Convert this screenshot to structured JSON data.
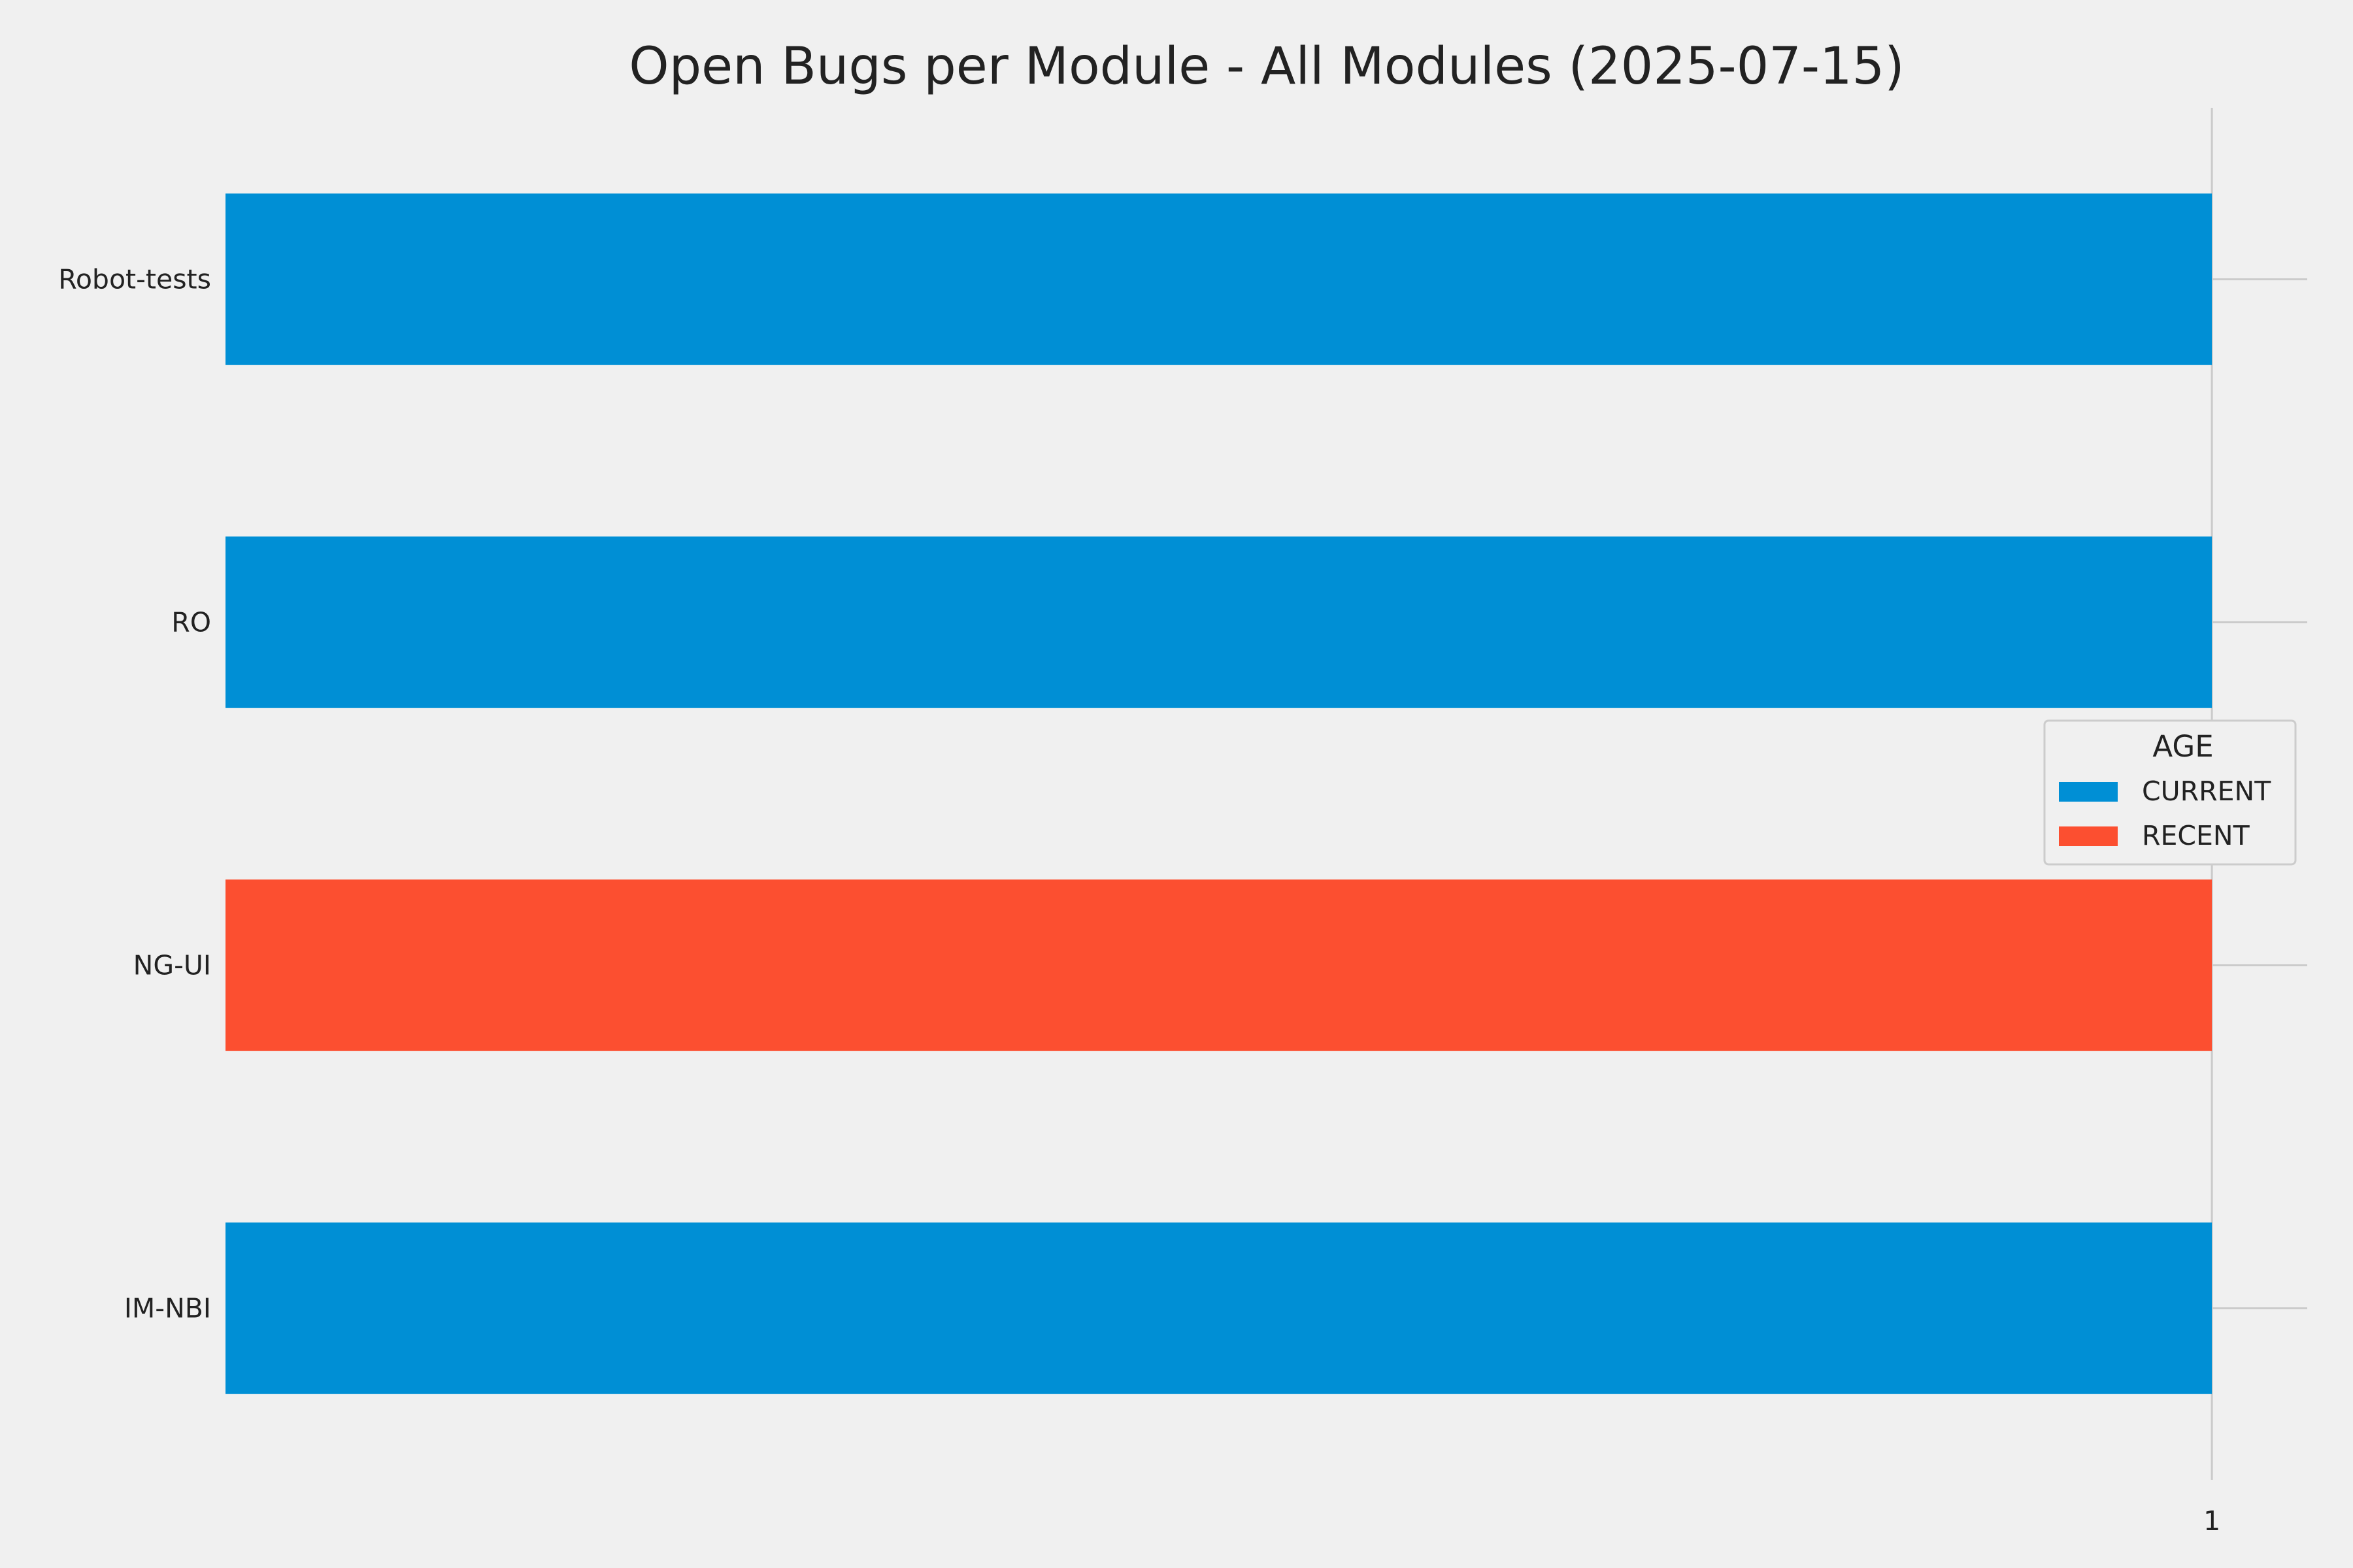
{
  "chart_data": {
    "type": "bar",
    "orientation": "horizontal",
    "title": "Open Bugs per Module - All Modules (2025-07-15)",
    "xlabel": "",
    "ylabel": "",
    "categories": [
      "Robot-tests",
      "RO",
      "NG-UI",
      "IM-NBI"
    ],
    "values": [
      1,
      1,
      1,
      1
    ],
    "bar_age": [
      "CURRENT",
      "CURRENT",
      "RECENT",
      "CURRENT"
    ],
    "xlim": [
      0,
      1.048
    ],
    "x_ticks": [
      "1"
    ],
    "x_tick_values": [
      1
    ],
    "grid": true,
    "legend": {
      "title": "AGE",
      "placement": "center-right",
      "entries": [
        {
          "label": "CURRENT",
          "color": "#008fd5"
        },
        {
          "label": "RECENT",
          "color": "#fc4f30"
        }
      ]
    },
    "colors": {
      "CURRENT": "#008fd5",
      "RECENT": "#fc4f30"
    }
  }
}
